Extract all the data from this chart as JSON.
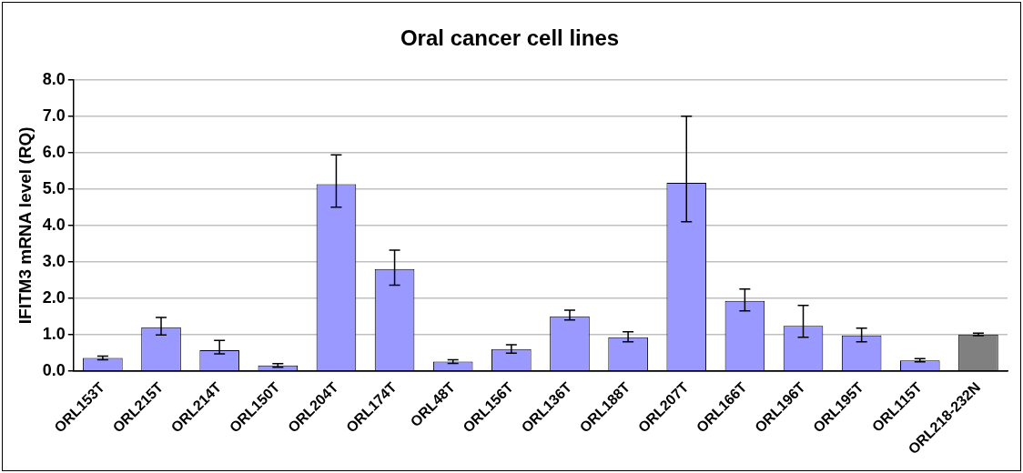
{
  "chart_data": {
    "type": "bar",
    "title": "Oral cancer cell lines",
    "ylabel": "IFITM3 mRNA level (RQ)",
    "categories": [
      "ORL153T",
      "ORL215T",
      "ORL214T",
      "ORL150T",
      "ORL204T",
      "ORL174T",
      "ORL48T",
      "ORL156T",
      "ORL136T",
      "ORL188T",
      "ORL207T",
      "ORL166T",
      "ORL196T",
      "ORL195T",
      "ORL115T",
      "ORL218-232N"
    ],
    "values": [
      0.36,
      1.2,
      0.57,
      0.15,
      5.13,
      2.8,
      0.26,
      0.6,
      1.5,
      0.93,
      5.17,
      1.93,
      1.24,
      0.98,
      0.29,
      1.0
    ],
    "errors": [
      [
        0.31,
        0.41
      ],
      [
        0.99,
        1.47
      ],
      [
        0.47,
        0.84
      ],
      [
        0.1,
        0.2
      ],
      [
        4.5,
        5.94
      ],
      [
        2.36,
        3.32
      ],
      [
        0.21,
        0.31
      ],
      [
        0.49,
        0.72
      ],
      [
        1.4,
        1.67
      ],
      [
        0.8,
        1.08
      ],
      [
        4.1,
        7.0
      ],
      [
        1.65,
        2.25
      ],
      [
        0.93,
        1.8
      ],
      [
        0.8,
        1.18
      ],
      [
        0.25,
        0.34
      ],
      [
        0.97,
        1.04
      ]
    ],
    "colors": [
      "#9999ff",
      "#9999ff",
      "#9999ff",
      "#9999ff",
      "#9999ff",
      "#9999ff",
      "#9999ff",
      "#9999ff",
      "#9999ff",
      "#9999ff",
      "#9999ff",
      "#9999ff",
      "#9999ff",
      "#9999ff",
      "#9999ff",
      "#808080"
    ],
    "ylim": [
      0,
      8
    ],
    "yticks": [
      {
        "value": 0,
        "label": "0.0"
      },
      {
        "value": 1,
        "label": "1.0"
      },
      {
        "value": 2,
        "label": "2.0"
      },
      {
        "value": 3,
        "label": "3.0"
      },
      {
        "value": 4,
        "label": "4.0"
      },
      {
        "value": 5,
        "label": "5.0"
      },
      {
        "value": 6,
        "label": "6.0"
      },
      {
        "value": 7,
        "label": "7.0"
      },
      {
        "value": 8,
        "label": "8.0"
      }
    ],
    "grid": "y",
    "legend": false
  }
}
